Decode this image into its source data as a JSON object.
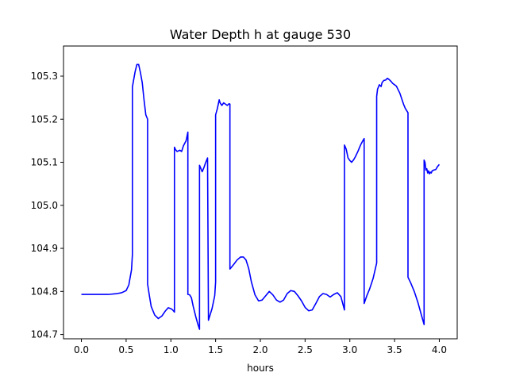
{
  "chart_data": {
    "type": "line",
    "title": "Water Depth h at gauge 530",
    "xlabel": "hours",
    "ylabel": "",
    "xlim": [
      -0.2,
      4.2
    ],
    "ylim": [
      104.69,
      105.37
    ],
    "xticks": [
      0.0,
      0.5,
      1.0,
      1.5,
      2.0,
      2.5,
      3.0,
      3.5,
      4.0
    ],
    "xtick_labels": [
      "0.0",
      "0.5",
      "1.0",
      "1.5",
      "2.0",
      "2.5",
      "3.0",
      "3.5",
      "4.0"
    ],
    "yticks": [
      104.7,
      104.8,
      104.9,
      105.0,
      105.1,
      105.2,
      105.3
    ],
    "ytick_labels": [
      "104.7",
      "104.8",
      "104.9",
      "105.0",
      "105.1",
      "105.2",
      "105.3"
    ],
    "grid": false,
    "series": [
      {
        "color": "#0000ff",
        "x": [
          0.0,
          0.1,
          0.2,
          0.3,
          0.4,
          0.45,
          0.5,
          0.53,
          0.56,
          0.57,
          0.57,
          0.6,
          0.62,
          0.64,
          0.66,
          0.68,
          0.7,
          0.72,
          0.74,
          0.74,
          0.76,
          0.78,
          0.82,
          0.86,
          0.9,
          0.94,
          0.97,
          1.0,
          1.02,
          1.04,
          1.04,
          1.05,
          1.07,
          1.09,
          1.1,
          1.12,
          1.14,
          1.17,
          1.19,
          1.19,
          1.21,
          1.23,
          1.25,
          1.28,
          1.3,
          1.32,
          1.32,
          1.34,
          1.35,
          1.37,
          1.39,
          1.41,
          1.42,
          1.43,
          1.46,
          1.49,
          1.5,
          1.5,
          1.52,
          1.54,
          1.55,
          1.57,
          1.59,
          1.61,
          1.63,
          1.65,
          1.66,
          1.66,
          1.7,
          1.74,
          1.78,
          1.81,
          1.84,
          1.87,
          1.9,
          1.94,
          1.98,
          2.02,
          2.06,
          2.1,
          2.14,
          2.18,
          2.22,
          2.26,
          2.3,
          2.34,
          2.38,
          2.42,
          2.46,
          2.5,
          2.54,
          2.58,
          2.62,
          2.66,
          2.7,
          2.74,
          2.78,
          2.82,
          2.86,
          2.9,
          2.94,
          2.94,
          2.96,
          2.98,
          3.0,
          3.02,
          3.04,
          3.06,
          3.09,
          3.12,
          3.14,
          3.16,
          3.16,
          3.19,
          3.22,
          3.26,
          3.3,
          3.3,
          3.31,
          3.33,
          3.35,
          3.36,
          3.38,
          3.4,
          3.42,
          3.44,
          3.46,
          3.48,
          3.52,
          3.56,
          3.6,
          3.62,
          3.65,
          3.65,
          3.68,
          3.72,
          3.76,
          3.8,
          3.83,
          3.83,
          3.84,
          3.85,
          3.86,
          3.87,
          3.88,
          3.89,
          3.9,
          3.91,
          3.92,
          3.94,
          3.96,
          3.98,
          4.0
        ],
        "y": [
          104.793,
          104.793,
          104.793,
          104.793,
          104.795,
          104.797,
          104.802,
          104.815,
          104.85,
          104.885,
          105.275,
          105.31,
          105.327,
          105.327,
          105.308,
          105.285,
          105.245,
          105.21,
          105.2,
          104.817,
          104.79,
          104.765,
          104.745,
          104.737,
          104.743,
          104.755,
          104.762,
          104.76,
          104.757,
          104.752,
          105.135,
          105.13,
          105.125,
          105.127,
          105.128,
          105.125,
          105.138,
          105.15,
          105.17,
          104.793,
          104.792,
          104.785,
          104.765,
          104.74,
          104.725,
          104.712,
          105.093,
          105.083,
          105.078,
          105.088,
          105.1,
          105.11,
          104.733,
          104.74,
          104.76,
          104.79,
          104.822,
          105.21,
          105.225,
          105.245,
          105.238,
          105.232,
          105.238,
          105.235,
          105.232,
          105.236,
          105.235,
          104.852,
          104.862,
          104.873,
          104.88,
          104.88,
          104.873,
          104.853,
          104.822,
          104.792,
          104.778,
          104.78,
          104.79,
          104.8,
          104.792,
          104.78,
          104.775,
          104.78,
          104.795,
          104.802,
          104.8,
          104.79,
          104.778,
          104.763,
          104.755,
          104.757,
          104.772,
          104.788,
          104.795,
          104.793,
          104.787,
          104.793,
          104.797,
          104.788,
          104.757,
          105.14,
          105.13,
          105.11,
          105.104,
          105.1,
          105.105,
          105.112,
          105.125,
          105.14,
          105.148,
          105.155,
          104.772,
          104.79,
          104.805,
          104.83,
          104.866,
          105.253,
          105.27,
          105.28,
          105.276,
          105.285,
          105.29,
          105.291,
          105.295,
          105.292,
          105.288,
          105.283,
          105.277,
          105.26,
          105.235,
          105.225,
          105.215,
          104.833,
          104.82,
          104.8,
          104.775,
          104.745,
          104.723,
          105.105,
          105.1,
          105.082,
          105.085,
          105.075,
          105.08,
          105.073,
          105.077,
          105.075,
          105.08,
          105.082,
          105.083,
          105.09,
          105.095
        ]
      }
    ]
  }
}
